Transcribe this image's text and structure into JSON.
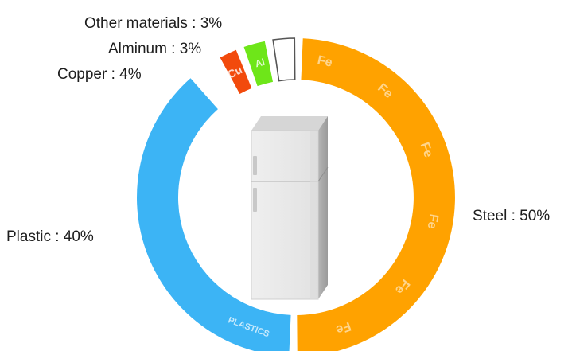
{
  "chart_data": {
    "type": "pie",
    "variant": "donut",
    "title": "",
    "categories": [
      "Steel",
      "Plastic",
      "Copper",
      "Alminum",
      "Other materials"
    ],
    "values": [
      50,
      40,
      4,
      3,
      3
    ],
    "unit": "%",
    "labels": {
      "steel": "Steel : 50%",
      "plastic": "Plastic : 40%",
      "copper": "Copper : 4%",
      "aluminum": "Alminum : 3%",
      "other": "Other materials : 3%"
    },
    "ring_texts": {
      "steel_symbol": "Fe",
      "plastic_text": "PLASTICS",
      "copper_symbol": "Cu",
      "aluminum_symbol": "Al"
    },
    "colors": {
      "Steel": "#FFA200",
      "Plastic": "#3CB4F5",
      "Copper": "#F24A0C",
      "Alminum": "#6EE619",
      "Other materials": "#FFFFFF"
    },
    "center_icon": "refrigerator-icon",
    "legend": "none",
    "grid": false
  }
}
